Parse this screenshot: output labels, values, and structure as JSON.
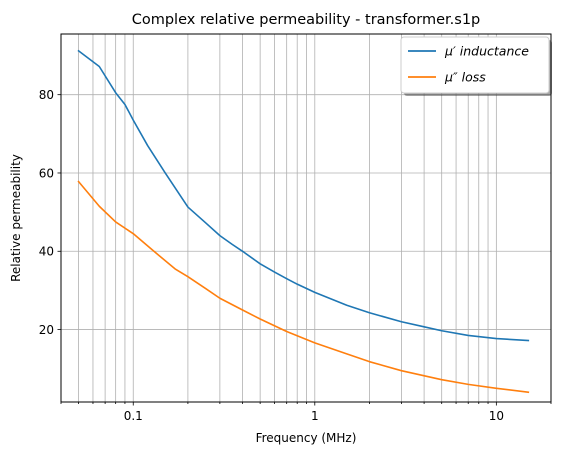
{
  "chart_data": {
    "type": "line",
    "title": "Complex relative permeability - transformer.s1p",
    "xlabel": "Frequency (MHz)",
    "ylabel": "Relative permeability",
    "x_scale": "log",
    "xlim": [
      0.04,
      20
    ],
    "ylim": [
      1.5,
      95.5
    ],
    "x_ticks": [
      {
        "value": 0.1,
        "label": "0.1"
      },
      {
        "value": 1,
        "label": "1"
      },
      {
        "value": 10,
        "label": "10"
      }
    ],
    "y_ticks": [
      {
        "value": 20,
        "label": "20"
      },
      {
        "value": 40,
        "label": "40"
      },
      {
        "value": 60,
        "label": "60"
      },
      {
        "value": 80,
        "label": "80"
      }
    ],
    "grid": "on (major and minor vertical, major horizontal)",
    "legend_position": "upper-right",
    "series": [
      {
        "name": "μ′ inductance",
        "color": "#1f77b4",
        "x": [
          0.05,
          0.065,
          0.08,
          0.09,
          0.1,
          0.12,
          0.15,
          0.18,
          0.2,
          0.25,
          0.3,
          0.35,
          0.4,
          0.5,
          0.6,
          0.7,
          0.8,
          1.0,
          1.5,
          2.0,
          3.0,
          4.0,
          5.0,
          7.0,
          10.0,
          15.0
        ],
        "y": [
          91.2,
          87.2,
          80.5,
          77.5,
          73.5,
          67.0,
          60.0,
          54.5,
          51.3,
          47.3,
          44.0,
          41.8,
          40.0,
          36.8,
          34.7,
          33.0,
          31.6,
          29.5,
          26.2,
          24.3,
          22.0,
          20.7,
          19.7,
          18.5,
          17.7,
          17.2
        ]
      },
      {
        "name": "μ″ loss",
        "color": "#ff7f0e",
        "x": [
          0.05,
          0.065,
          0.08,
          0.1,
          0.13,
          0.17,
          0.2,
          0.25,
          0.3,
          0.4,
          0.5,
          0.7,
          1.0,
          1.5,
          2.0,
          3.0,
          5.0,
          7.0,
          10.0,
          15.0
        ],
        "y": [
          57.8,
          51.5,
          47.5,
          44.5,
          40.0,
          35.5,
          33.5,
          30.5,
          28.0,
          25.0,
          22.7,
          19.5,
          16.6,
          13.8,
          11.8,
          9.5,
          7.2,
          6.0,
          5.0,
          4.0
        ]
      }
    ]
  }
}
